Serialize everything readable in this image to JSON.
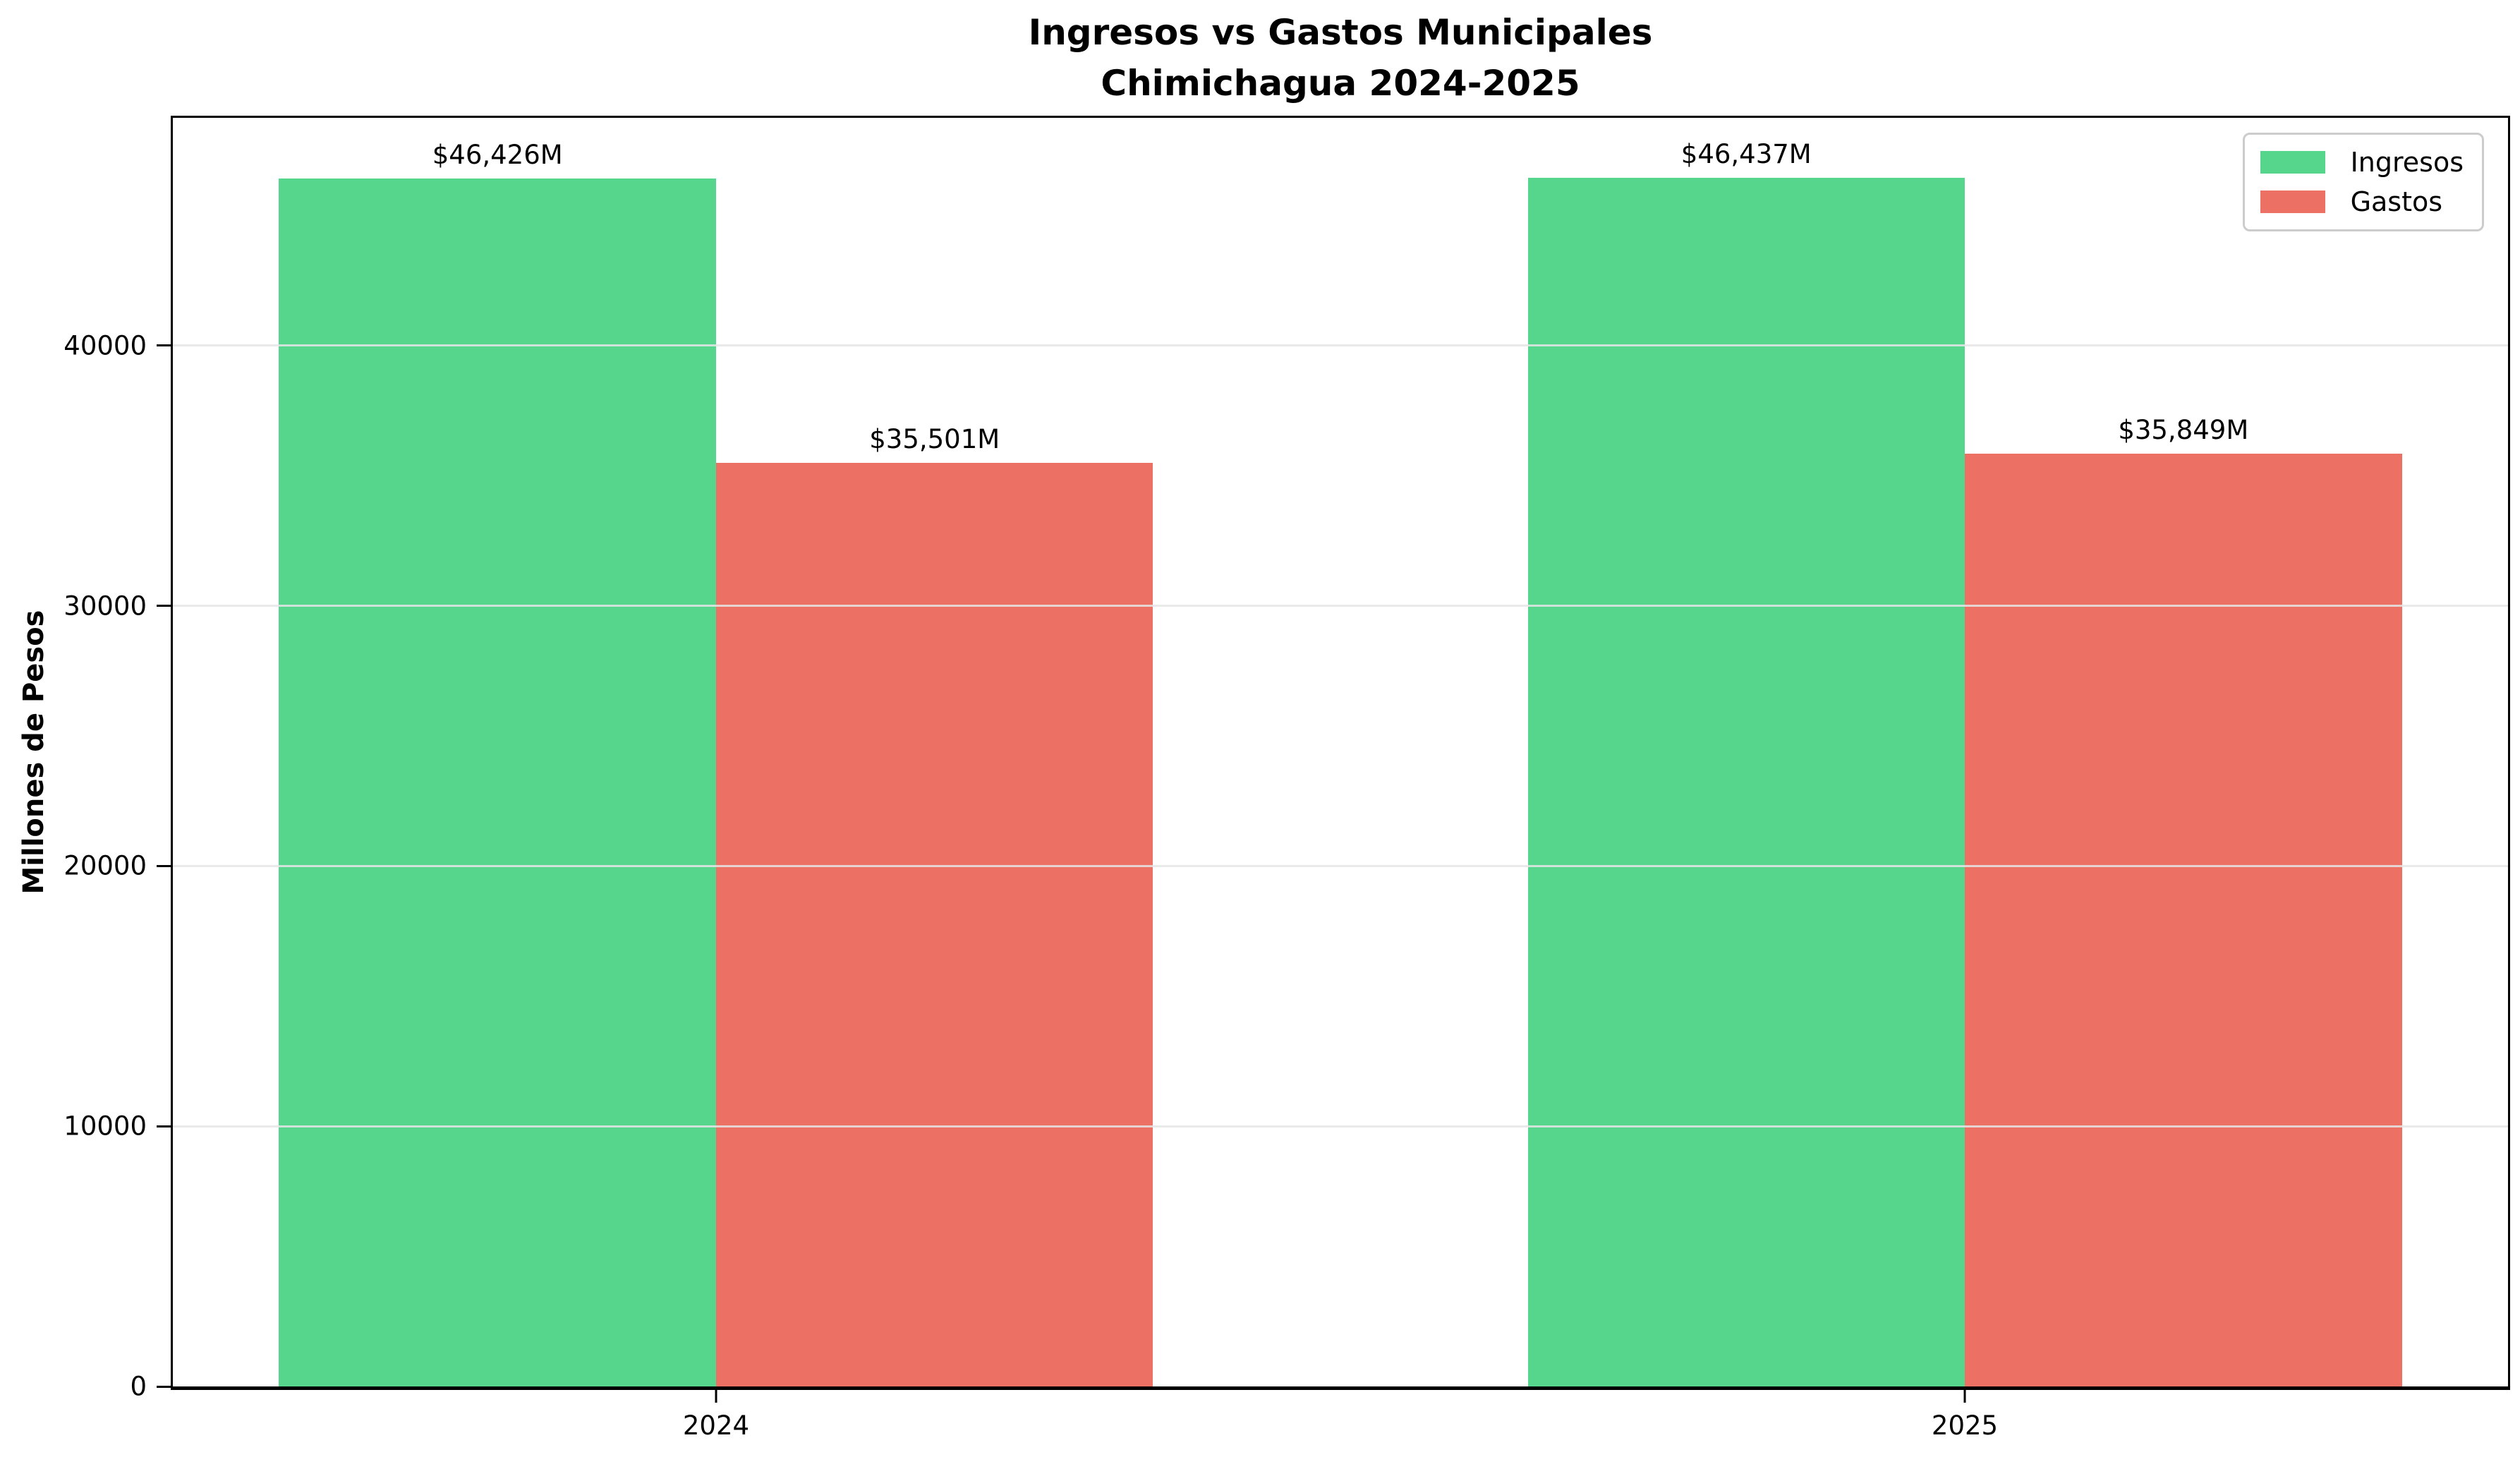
{
  "header": {
    "title_line1": "Ingresos vs Gastos Municipales",
    "title_line2": "Chimichagua 2024-2025"
  },
  "chart_data": {
    "type": "bar",
    "title": "Ingresos vs Gastos Municipales\nChimichagua 2024-2025",
    "xlabel": "",
    "ylabel": "Millones de Pesos",
    "categories": [
      "2024",
      "2025"
    ],
    "series": [
      {
        "name": "Ingresos",
        "color": "#56d68c",
        "values": [
          46426,
          46437
        ],
        "labels": [
          "$46,426M",
          "$46,437M"
        ]
      },
      {
        "name": "Gastos",
        "color": "#ec7063",
        "values": [
          35501,
          35849
        ],
        "labels": [
          "$35,501M",
          "$35,849M"
        ]
      }
    ],
    "ylim": [
      0,
      48750
    ],
    "yticks": [
      0,
      10000,
      20000,
      30000,
      40000
    ],
    "grid": true,
    "grid_color": "#e5e5e5",
    "legend_position": "upper right",
    "bar_width": 0.35,
    "colors": {
      "ingresos": "#56d68c",
      "gastos": "#ec7063",
      "spine": "#000000",
      "background": "#ffffff"
    }
  }
}
